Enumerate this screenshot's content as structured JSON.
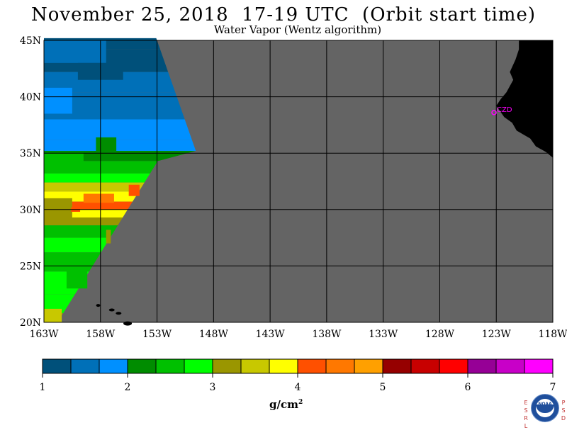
{
  "title": "November 25, 2018  17-19 UTC  (Orbit start time)",
  "subtitle": "Water Vapor (Wentz algorithm)",
  "lat_labels": [
    "45N",
    "40N",
    "35N",
    "30N",
    "25N",
    "20N"
  ],
  "lon_labels": [
    "163W",
    "158W",
    "153W",
    "148W",
    "143W",
    "138W",
    "133W",
    "128W",
    "123W",
    "118W"
  ],
  "station": {
    "label": "CZD",
    "lat": 38.6,
    "lon": -123.2,
    "color": "#ff00ff"
  },
  "colorbar": {
    "ticks": [
      "1",
      "2",
      "3",
      "4",
      "5",
      "6",
      "7"
    ],
    "units_base": "g/cm",
    "units_exp": "2",
    "colors": [
      "#00507a",
      "#0070b8",
      "#0090ff",
      "#008c00",
      "#00c000",
      "#00ff00",
      "#9a9600",
      "#c8c800",
      "#ffff00",
      "#ff5000",
      "#ff7800",
      "#ffa000",
      "#960000",
      "#c80000",
      "#ff0000",
      "#960096",
      "#c800c8",
      "#ff00ff"
    ]
  },
  "map_colors": {
    "nodata": "#646464",
    "land": "#000000",
    "grid": "#000000"
  },
  "logos": {
    "left": "ESRL",
    "right": "PSD",
    "center": "NOAA"
  }
}
